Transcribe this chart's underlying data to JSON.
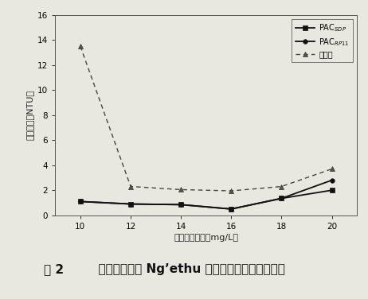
{
  "x": [
    10,
    12,
    14,
    16,
    18,
    20
  ],
  "pac_sdp": [
    1.1,
    0.9,
    0.85,
    0.5,
    1.35,
    2.0
  ],
  "pac_rp11": [
    1.1,
    0.9,
    0.85,
    0.5,
    1.35,
    2.8
  ],
  "sulfate_al": [
    13.5,
    2.3,
    2.05,
    1.95,
    2.3,
    3.7
  ],
  "xlabel": "混凝剂投加量（mg/L）",
  "ylabel": "剩余浊度（NTU）",
  "ylim": [
    0,
    16
  ],
  "yticks": [
    0,
    2,
    4,
    6,
    8,
    10,
    12,
    14,
    16
  ],
  "xlim": [
    9,
    21
  ],
  "xticks": [
    10,
    12,
    14,
    16,
    18,
    20
  ],
  "legend_labels": [
    "PAC$_{SDP}$",
    "PAC$_{RP11}$",
    "硫酸铝"
  ],
  "caption_bold": "图 2",
  "caption_normal": "  不同混凝剂对 Ng’ethu 地区原水的混凝效果比较",
  "bg_color": "#e8e8e0",
  "plot_bg": "#dcdcd4"
}
